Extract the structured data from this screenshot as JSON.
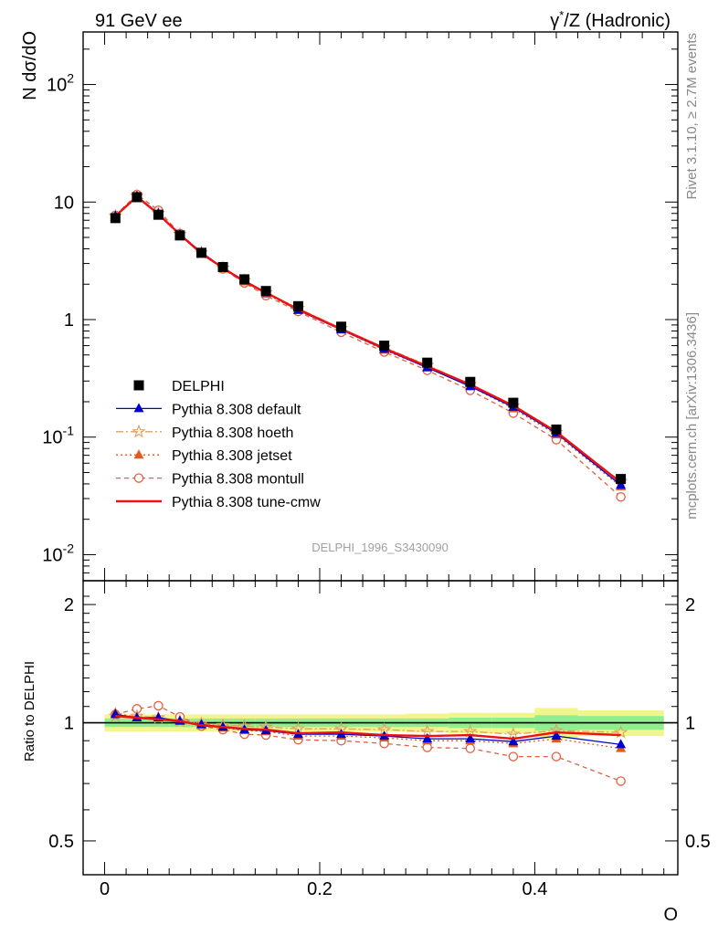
{
  "header": {
    "left": "91 GeV ee",
    "right_main": "γ",
    "right_sup": "*",
    "right_rest": "/Z (Hadronic)"
  },
  "side": {
    "rivet": "Rivet 3.1.10, ≥ 2.7M events",
    "mcplots": "mcplots.cern.ch [arXiv:1306.3436]"
  },
  "watermark": "DELPHI_1996_S3430090",
  "colors": {
    "data": "#000000",
    "default": "#0000cc",
    "hoeth": "#e0a060",
    "jetset": "#e05a1e",
    "montull": "#e06040",
    "cmw": "#ee1111",
    "band_inner": "#90ee90",
    "band_outer": "#f0f58c"
  },
  "chart_data": [
    {
      "type": "line",
      "panel": "main",
      "ylabel": "N dσ/dO",
      "yscale": "log",
      "ylim": [
        0.006,
        280
      ],
      "xlim": [
        -0.02,
        0.533
      ],
      "ytick_labels": [
        "10^-2",
        "10^-1",
        "1",
        "10",
        "10^2"
      ],
      "legend_position": "lower-left",
      "x": [
        0.01,
        0.03,
        0.05,
        0.07,
        0.09,
        0.11,
        0.13,
        0.15,
        0.18,
        0.22,
        0.26,
        0.3,
        0.34,
        0.38,
        0.42,
        0.48
      ],
      "series": [
        {
          "name": "DELPHI",
          "key": "data",
          "marker": "square",
          "values": [
            7.3,
            11.0,
            7.8,
            5.2,
            3.7,
            2.8,
            2.2,
            1.75,
            1.3,
            0.87,
            0.6,
            0.43,
            0.295,
            0.196,
            0.116,
            0.044
          ]
        },
        {
          "name": "Pythia 8.308 default",
          "key": "default",
          "marker": "triangle",
          "values": [
            7.6,
            11.2,
            8.0,
            5.3,
            3.75,
            2.75,
            2.15,
            1.7,
            1.2,
            0.82,
            0.56,
            0.39,
            0.27,
            0.18,
            0.108,
            0.039
          ]
        },
        {
          "name": "Pythia 8.308 hoeth",
          "key": "hoeth",
          "marker": "star",
          "values": [
            7.6,
            11.3,
            8.0,
            5.3,
            3.7,
            2.75,
            2.15,
            1.7,
            1.25,
            0.84,
            0.58,
            0.41,
            0.28,
            0.185,
            0.11,
            0.042
          ]
        },
        {
          "name": "Pythia 8.308 jetset",
          "key": "jetset",
          "marker": "triangle",
          "values": [
            7.7,
            11.3,
            8.0,
            5.3,
            3.65,
            2.75,
            2.1,
            1.65,
            1.2,
            0.82,
            0.55,
            0.39,
            0.27,
            0.175,
            0.105,
            0.038
          ]
        },
        {
          "name": "Pythia 8.308 montull",
          "key": "montull",
          "marker": "circle",
          "values": [
            7.7,
            11.6,
            8.5,
            5.4,
            3.7,
            2.7,
            2.05,
            1.6,
            1.17,
            0.78,
            0.53,
            0.37,
            0.25,
            0.16,
            0.095,
            0.031
          ]
        },
        {
          "name": "Pythia 8.308 tune-cmw",
          "key": "cmw",
          "marker": "none",
          "values": [
            7.6,
            11.1,
            7.9,
            5.3,
            3.65,
            2.75,
            2.1,
            1.7,
            1.22,
            0.83,
            0.57,
            0.4,
            0.28,
            0.185,
            0.111,
            0.041
          ]
        }
      ]
    },
    {
      "type": "line",
      "panel": "ratio",
      "ylabel": "Ratio to DELPHI",
      "xlabel": "O",
      "ylim": [
        0.41,
        2.3
      ],
      "xlim": [
        -0.02,
        0.533
      ],
      "xtick_labels": [
        "0",
        "0.2",
        "0.4"
      ],
      "ytick_labels": [
        "0.5",
        "1",
        "2"
      ],
      "x": [
        0.01,
        0.03,
        0.05,
        0.07,
        0.09,
        0.11,
        0.13,
        0.15,
        0.18,
        0.22,
        0.26,
        0.3,
        0.34,
        0.38,
        0.42,
        0.48
      ],
      "band": {
        "edges": [
          0,
          0.02,
          0.04,
          0.06,
          0.08,
          0.1,
          0.12,
          0.14,
          0.16,
          0.2,
          0.24,
          0.28,
          0.32,
          0.36,
          0.4,
          0.44,
          0.52
        ],
        "inner": [
          0.025,
          0.025,
          0.025,
          0.025,
          0.025,
          0.025,
          0.025,
          0.025,
          0.025,
          0.025,
          0.025,
          0.025,
          0.03,
          0.03,
          0.045,
          0.04
        ],
        "outer": [
          0.05,
          0.05,
          0.05,
          0.05,
          0.05,
          0.05,
          0.05,
          0.05,
          0.05,
          0.05,
          0.05,
          0.055,
          0.06,
          0.06,
          0.09,
          0.075
        ]
      },
      "series": [
        {
          "name": "Pythia 8.308 default",
          "key": "default",
          "marker": "triangle",
          "values": [
            1.05,
            1.03,
            1.03,
            1.01,
            0.99,
            0.975,
            0.96,
            0.955,
            0.935,
            0.935,
            0.925,
            0.91,
            0.91,
            0.895,
            0.925,
            0.88
          ]
        },
        {
          "name": "Pythia 8.308 hoeth",
          "key": "hoeth",
          "marker": "star",
          "values": [
            1.04,
            1.04,
            1.03,
            1.01,
            0.995,
            0.985,
            0.98,
            0.975,
            0.965,
            0.965,
            0.96,
            0.95,
            0.95,
            0.935,
            0.955,
            0.945
          ]
        },
        {
          "name": "Pythia 8.308 jetset",
          "key": "jetset",
          "marker": "triangle",
          "values": [
            1.06,
            1.03,
            1.03,
            1.01,
            0.985,
            0.97,
            0.955,
            0.95,
            0.925,
            0.925,
            0.915,
            0.9,
            0.9,
            0.885,
            0.91,
            0.86
          ]
        },
        {
          "name": "Pythia 8.308 montull",
          "key": "montull",
          "marker": "circle",
          "values": [
            1.05,
            1.085,
            1.105,
            1.035,
            0.98,
            0.96,
            0.935,
            0.93,
            0.905,
            0.9,
            0.885,
            0.865,
            0.86,
            0.82,
            0.82,
            0.71
          ]
        },
        {
          "name": "Pythia 8.308 tune-cmw",
          "key": "cmw",
          "marker": "none",
          "values": [
            1.04,
            1.03,
            1.02,
            1.01,
            0.985,
            0.975,
            0.965,
            0.96,
            0.94,
            0.945,
            0.93,
            0.925,
            0.93,
            0.91,
            0.945,
            0.93
          ]
        }
      ]
    }
  ]
}
